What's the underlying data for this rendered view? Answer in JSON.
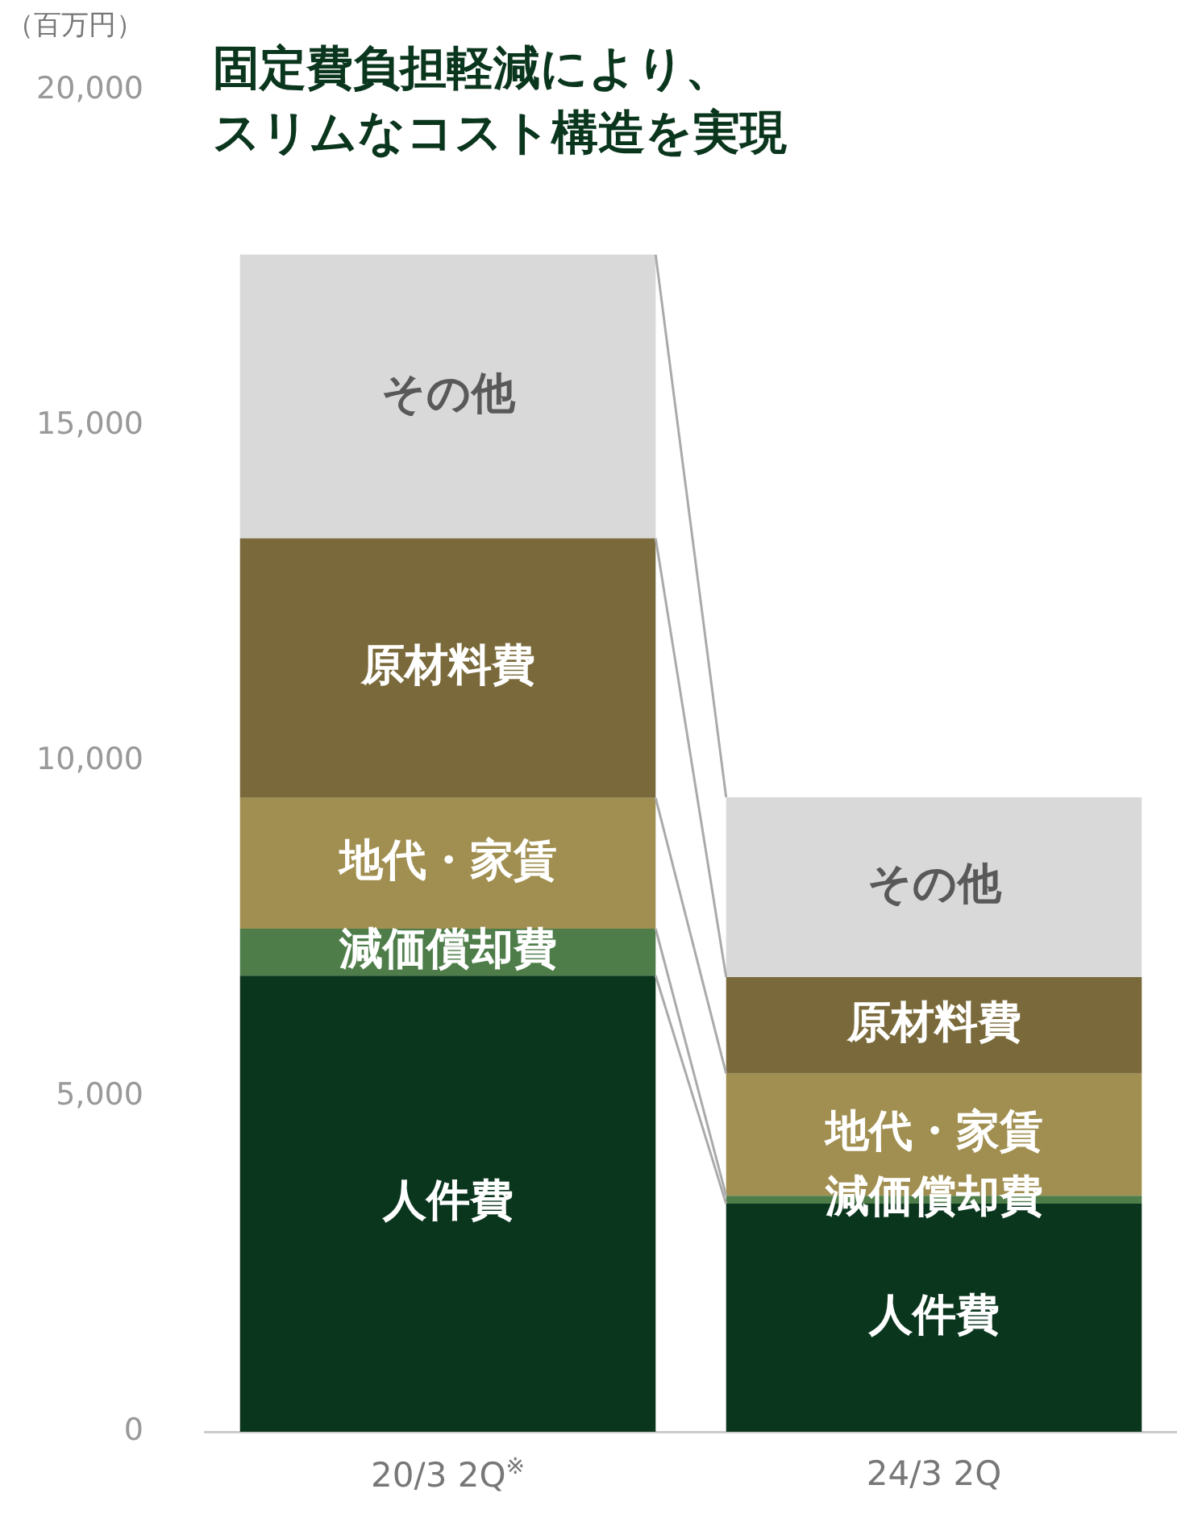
{
  "chart_data": {
    "type": "bar",
    "stacked": true,
    "title": "固定費負担軽減により、スリムなコスト構造を実現",
    "ylabel": "（百万円）",
    "categories": [
      "20/3 2Q$^{※}$",
      "24/3 2Q"
    ],
    "series": [
      {
        "name": "人件費",
        "color": "#0b361e",
        "values": [
          6800,
          3400
        ]
      },
      {
        "name": "減価償却費",
        "color": "#4e7d4a",
        "values": [
          700,
          120
        ]
      },
      {
        "name": "地代・家賃",
        "color": "#a08f50",
        "values": [
          1950,
          1820
        ]
      },
      {
        "name": "原材料費",
        "color": "#7a6a3b",
        "values": [
          3870,
          1440
        ]
      },
      {
        "name": "その他",
        "color": "#d9d9d9",
        "values": [
          4230,
          2680
        ]
      }
    ],
    "ylim": [
      0,
      20000
    ],
    "yticks": [
      {
        "value": 0,
        "label": "0"
      },
      {
        "value": 5000,
        "label": "5,000"
      },
      {
        "value": 10000,
        "label": "10,000"
      },
      {
        "value": 15000,
        "label": "15,000"
      },
      {
        "value": 20000,
        "label": "20,000"
      }
    ],
    "grid": false,
    "legend": false
  }
}
